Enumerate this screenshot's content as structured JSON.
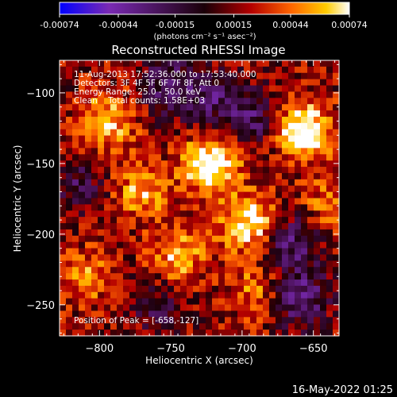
{
  "colorbar": {
    "ticks": [
      -0.00074,
      -0.00044,
      -0.00015,
      0.00015,
      0.00044,
      0.00074
    ],
    "tick_labels": [
      "-0.00074",
      "-0.00044",
      "-0.00015",
      "0.00015",
      "0.00044",
      "0.00074"
    ],
    "unit_label": "(photons cm⁻² s⁻¹ asec⁻²)",
    "range": [
      -0.00074,
      0.00074
    ],
    "colors": [
      "#0000ff",
      "#7a2ab4",
      "#1a0008",
      "#b40000",
      "#ff6600",
      "#ffcc00",
      "#ffffff"
    ]
  },
  "chart_data": {
    "type": "heatmap",
    "title": "Reconstructed RHESSI Image",
    "xlabel": "Heliocentric X (arcsec)",
    "ylabel": "Heliocentric Y (arcsec)",
    "xlim": [
      -828,
      -632
    ],
    "ylim": [
      -272,
      -77
    ],
    "x_ticks": [
      -800,
      -750,
      -700,
      -650
    ],
    "x_tick_labels": [
      "−800",
      "−750",
      "−700",
      "−650"
    ],
    "y_ticks": [
      -100,
      -150,
      -200,
      -250
    ],
    "y_tick_labels": [
      "−100",
      "−150",
      "−200",
      "−250"
    ],
    "grid": false,
    "annotations": [
      "11-Aug-2013 17:52:36.000 to 17:53:40.000",
      "Detectors: 3F 4F 5F 6F 7F 8F, Att 0",
      "Energy Range: 25.0 - 50.0 keV",
      "Clean    Total counts: 1.58E+03"
    ],
    "peak_label": "Position of Peak = [-658,-127]",
    "peak": [
      -658,
      -127
    ],
    "sources": [
      {
        "x": -722,
        "y": -150,
        "intensity": 0.00068
      },
      {
        "x": -695,
        "y": -192,
        "intensity": 0.0006
      },
      {
        "x": -658,
        "y": -127,
        "intensity": 0.00074
      },
      {
        "x": -795,
        "y": -120,
        "intensity": 0.00048
      },
      {
        "x": -770,
        "y": -170,
        "intensity": 0.0004
      },
      {
        "x": -745,
        "y": -215,
        "intensity": 0.00042
      },
      {
        "x": -690,
        "y": -240,
        "intensity": 0.0003
      },
      {
        "x": -810,
        "y": -230,
        "intensity": 0.00032
      },
      {
        "x": -640,
        "y": -180,
        "intensity": 0.00028
      }
    ],
    "negative_regions": [
      {
        "x": -660,
        "y": -245,
        "intensity": -0.0005
      },
      {
        "x": -720,
        "y": -105,
        "intensity": -0.00035
      },
      {
        "x": -760,
        "y": -250,
        "intensity": -0.00025
      },
      {
        "x": -815,
        "y": -165,
        "intensity": -0.0003
      },
      {
        "x": -665,
        "y": -205,
        "intensity": -0.00045
      },
      {
        "x": -750,
        "y": -95,
        "intensity": -0.0004
      },
      {
        "x": -690,
        "y": -120,
        "intensity": -0.00038
      }
    ]
  },
  "footer": {
    "date": "16-May-2022 01:25"
  }
}
